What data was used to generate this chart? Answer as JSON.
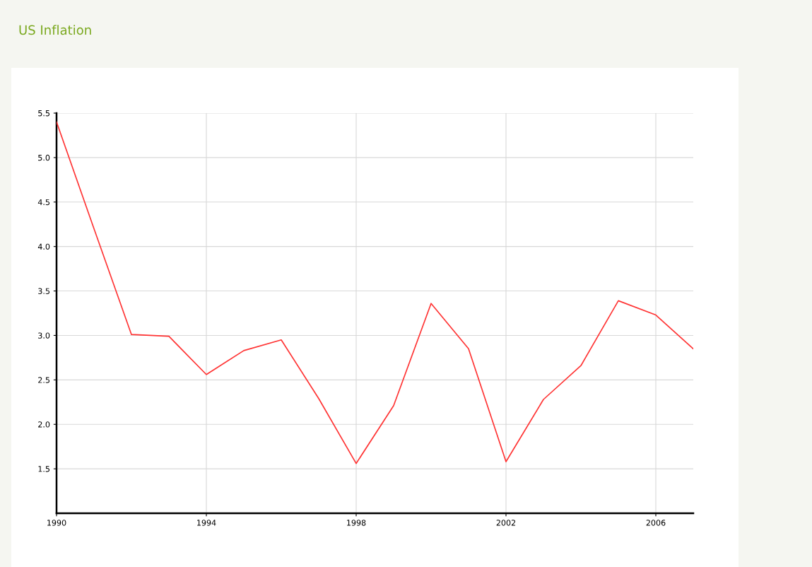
{
  "chart_data": {
    "type": "line",
    "title": "US Inflation",
    "x": [
      1990,
      1991,
      1992,
      1993,
      1994,
      1995,
      1996,
      1997,
      1998,
      1999,
      2000,
      2001,
      2002,
      2003,
      2004,
      2005,
      2006,
      2007
    ],
    "series": [
      {
        "color": "#ff3333",
        "values": [
          5.4,
          4.2,
          3.01,
          2.99,
          2.56,
          2.83,
          2.95,
          2.29,
          1.56,
          2.21,
          3.36,
          2.85,
          1.58,
          2.28,
          2.66,
          3.39,
          3.23,
          2.85
        ]
      }
    ],
    "xlim": [
      1990,
      2007
    ],
    "xticks": [
      1990,
      1994,
      1998,
      2002,
      2006
    ],
    "ylim": [
      1.0,
      5.5
    ],
    "yticks": [
      {
        "value": 1.5,
        "label": "1.5"
      },
      {
        "value": 2.0,
        "label": "2.0"
      },
      {
        "value": 2.5,
        "label": "2.5"
      },
      {
        "value": 3.0,
        "label": "3.0"
      },
      {
        "value": 3.5,
        "label": "3.5"
      },
      {
        "value": 4.0,
        "label": "4.0"
      },
      {
        "value": 4.5,
        "label": "4.5"
      },
      {
        "value": 5.0,
        "label": "5.0"
      },
      {
        "value": 5.5,
        "label": "5.5"
      }
    ],
    "grid": true,
    "marker": "none",
    "line_style": "solid"
  }
}
